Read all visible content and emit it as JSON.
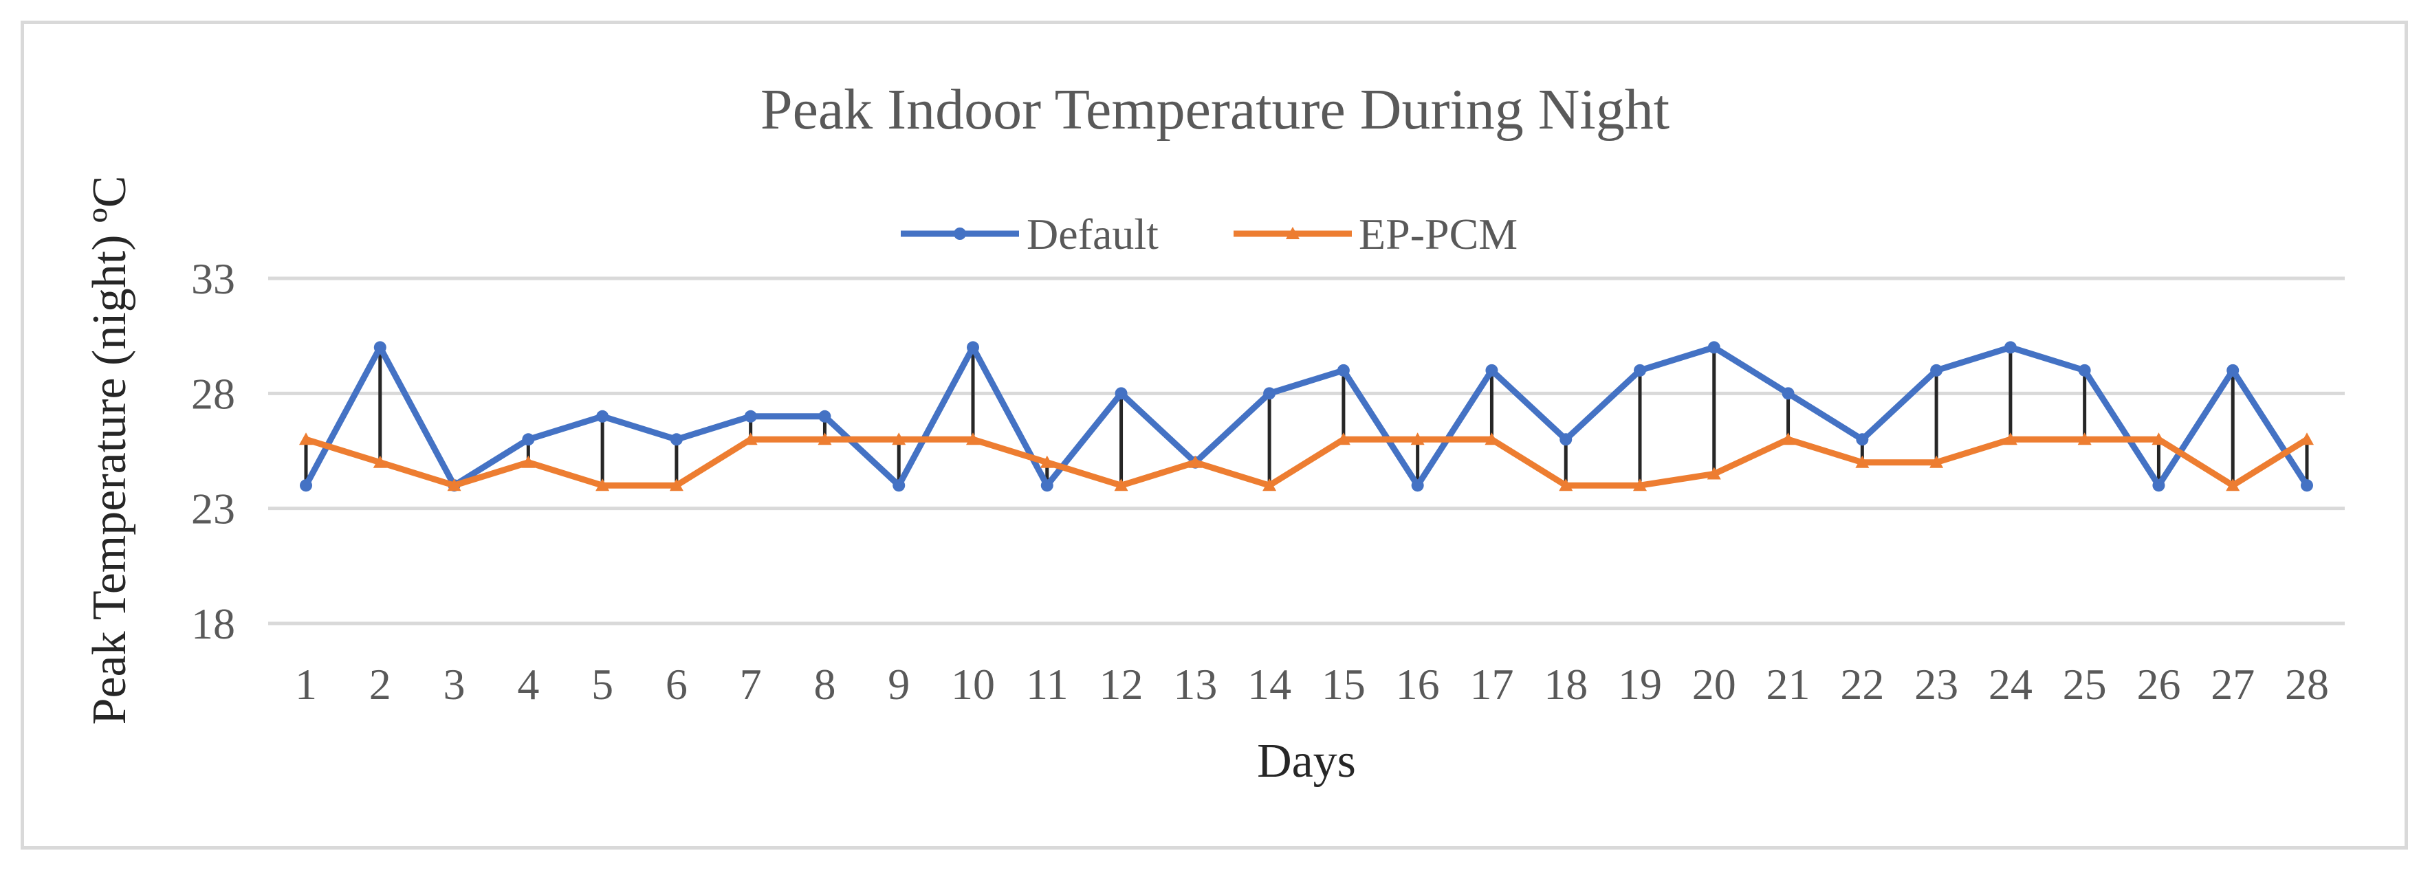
{
  "chart_data": {
    "type": "line",
    "title": "Peak Indoor Temperature During Night",
    "xlabel": "Days",
    "ylabel": "Peak Temperature (night) ºC",
    "ylim": [
      18,
      33
    ],
    "yticks": [
      18,
      23,
      28,
      33
    ],
    "grid": true,
    "legend_position": "top-center",
    "categories": [
      "1",
      "2",
      "3",
      "4",
      "5",
      "6",
      "7",
      "8",
      "9",
      "10",
      "11",
      "12",
      "13",
      "14",
      "15",
      "16",
      "17",
      "18",
      "19",
      "20",
      "21",
      "22",
      "23",
      "24",
      "25",
      "26",
      "27",
      "28"
    ],
    "high_low_lines": true,
    "series": [
      {
        "name": "Default",
        "color": "#4472c4",
        "marker": "circle",
        "values": [
          24,
          30,
          24,
          26,
          27,
          26,
          27,
          27,
          24,
          30,
          24,
          28,
          25,
          28,
          29,
          24,
          29,
          26,
          29,
          30,
          28,
          26,
          29,
          30,
          29,
          24,
          29,
          24
        ]
      },
      {
        "name": "EP-PCM",
        "color": "#ed7d31",
        "marker": "triangle",
        "values": [
          26,
          25,
          24,
          25,
          24,
          24,
          26,
          26,
          26,
          26,
          25,
          24,
          25,
          24,
          26,
          26,
          26,
          24,
          24,
          24.5,
          26,
          25,
          25,
          26,
          26,
          26,
          24,
          26
        ]
      }
    ]
  }
}
